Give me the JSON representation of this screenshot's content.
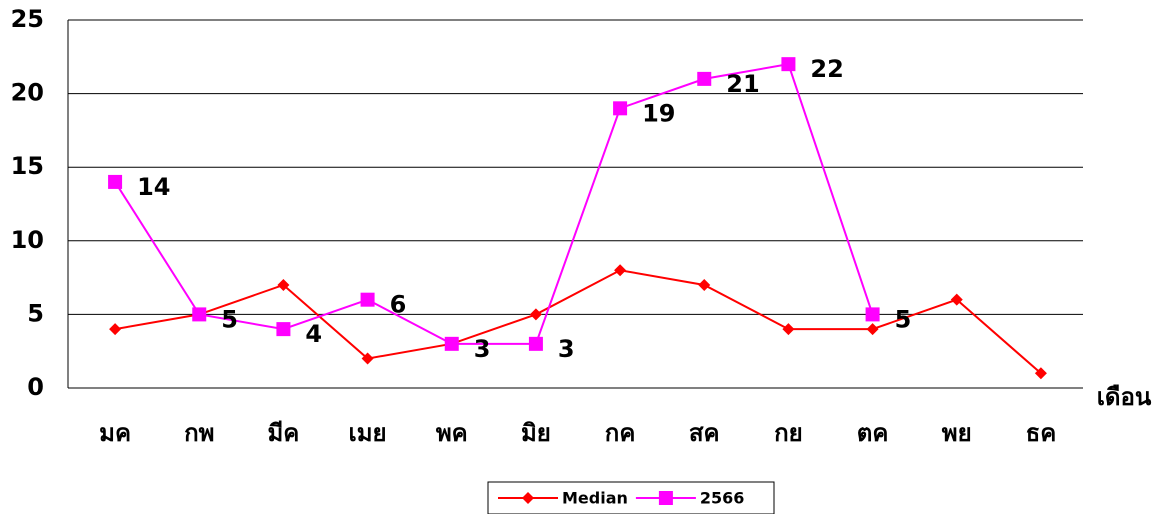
{
  "chart_data": {
    "type": "line",
    "x_label": "เดือน",
    "categories": [
      "มค",
      "กพ",
      "มีค",
      "เมย",
      "พค",
      "มิย",
      "กค",
      "สค",
      "กย",
      "ตค",
      "พย",
      "ธค"
    ],
    "series": [
      {
        "name": "Median",
        "color": "#ff0000",
        "marker": "diamond",
        "values": [
          4,
          5,
          7,
          2,
          3,
          5,
          8,
          7,
          4,
          4,
          6,
          1
        ]
      },
      {
        "name": "2566",
        "color": "#ff00ff",
        "marker": "square",
        "data_labels": true,
        "values": [
          14,
          5,
          4,
          6,
          3,
          3,
          19,
          21,
          22,
          5,
          null,
          null
        ]
      }
    ],
    "ylim": [
      0,
      25
    ],
    "yticks": [
      0,
      5,
      10,
      15,
      20,
      25
    ],
    "grid": true,
    "legend": "bottom"
  }
}
